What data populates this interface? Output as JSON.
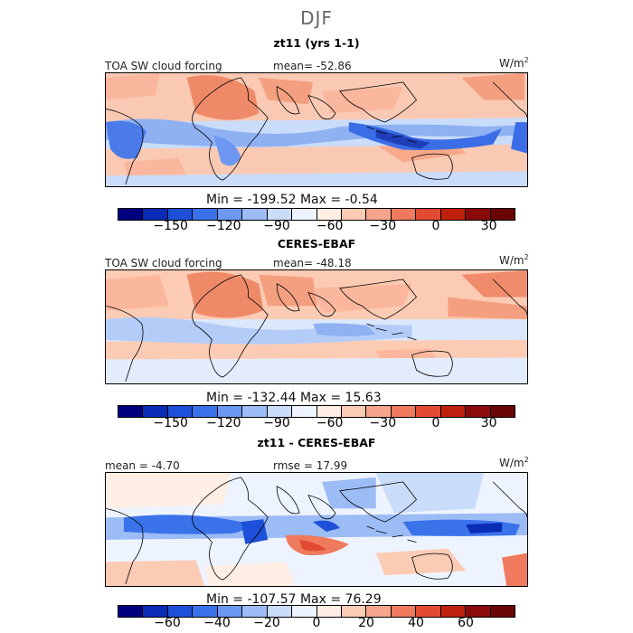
{
  "figure": {
    "season": "DJF",
    "units_base": "W/m",
    "units_exp": "2"
  },
  "panels": [
    {
      "title": "zt11 (yrs 1-1)",
      "left_label": "TOA SW cloud forcing",
      "center_label": "mean=  -52.86",
      "minmax": "Min = -199.52 Max =  -0.54",
      "ticks": [
        "-150",
        "-120",
        "-90",
        "-60",
        "-30",
        "0",
        "30"
      ]
    },
    {
      "title": "CERES-EBAF",
      "left_label": "TOA SW cloud forcing",
      "center_label": "mean= -48.18",
      "minmax": "Min = -132.44 Max =  15.63",
      "ticks": [
        "-150",
        "-120",
        "-90",
        "-60",
        "-30",
        "0",
        "30"
      ]
    },
    {
      "title": "zt11 - CERES-EBAF",
      "left_label": "mean =  -4.70",
      "center_label": "rmse =  17.99",
      "minmax": "Min = -107.57 Max =  76.29",
      "ticks": [
        "-60",
        "-40",
        "-20",
        "0",
        "20",
        "40",
        "60"
      ]
    }
  ],
  "chart_data": [
    {
      "type": "heatmap",
      "title": "zt11 (yrs 1-1)",
      "variable": "TOA SW cloud forcing",
      "mean": -52.86,
      "min": -199.52,
      "max": -0.54,
      "colorbar_ticks": [
        -150,
        -120,
        -90,
        -60,
        -30,
        0,
        30
      ],
      "colorbar_range": [
        -180,
        45
      ]
    },
    {
      "type": "heatmap",
      "title": "CERES-EBAF",
      "variable": "TOA SW cloud forcing",
      "mean": -48.18,
      "min": -132.44,
      "max": 15.63,
      "colorbar_ticks": [
        -150,
        -120,
        -90,
        -60,
        -30,
        0,
        30
      ],
      "colorbar_range": [
        -180,
        45
      ]
    },
    {
      "type": "heatmap",
      "title": "zt11 - CERES-EBAF",
      "mean": -4.7,
      "rmse": 17.99,
      "min": -107.57,
      "max": 76.29,
      "colorbar_ticks": [
        -60,
        -40,
        -20,
        0,
        20,
        40,
        60
      ],
      "colorbar_range": [
        -80,
        80
      ]
    }
  ],
  "palette": [
    "#00007f",
    "#0a2bb5",
    "#1e4fd8",
    "#3a72ea",
    "#6c98f2",
    "#9cbcf6",
    "#c9dcfa",
    "#eef4ff",
    "#ffeee4",
    "#fccbb4",
    "#f6a58c",
    "#ef7a5d",
    "#e24a32",
    "#c0210f",
    "#8b0a0a",
    "#6b0505"
  ]
}
